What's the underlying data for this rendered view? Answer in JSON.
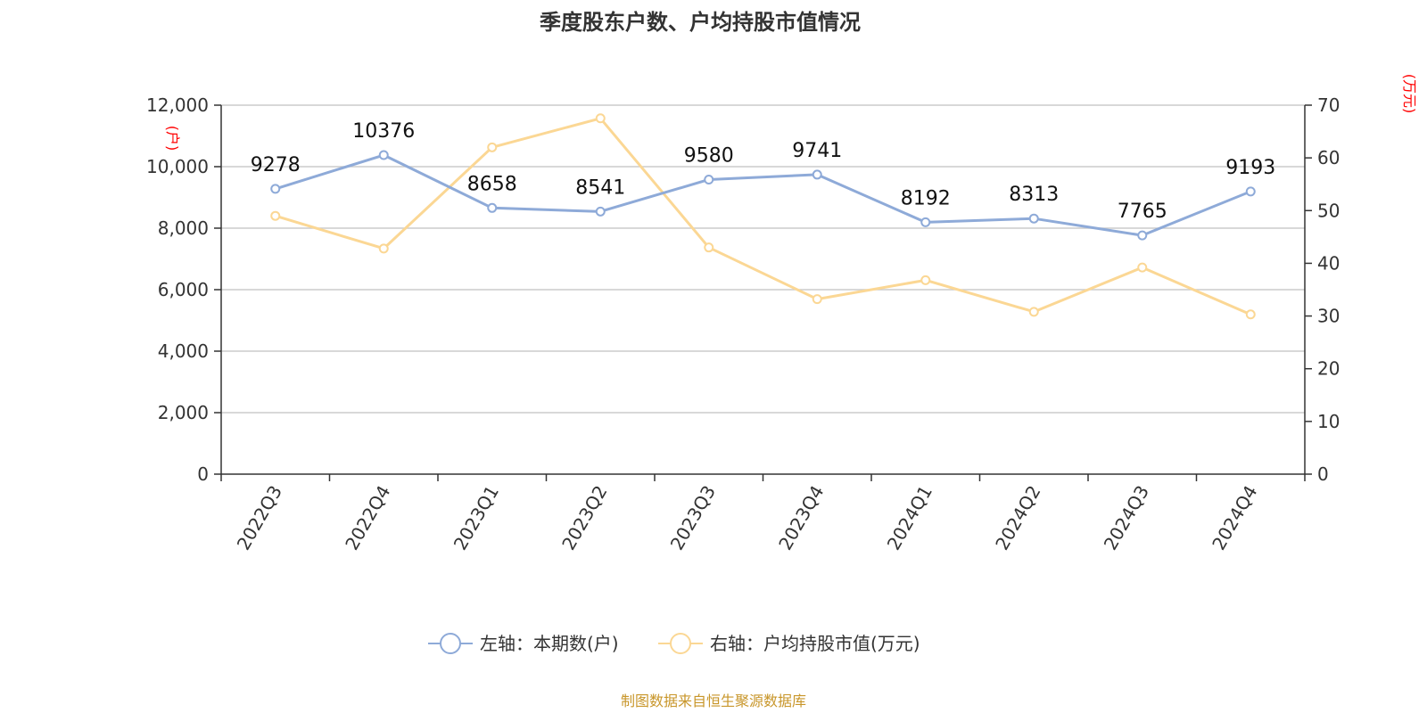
{
  "chart_data": {
    "type": "line",
    "title": "季度股东户数、户均持股市值情况",
    "categories": [
      "2022Q3",
      "2022Q4",
      "2023Q1",
      "2023Q2",
      "2023Q3",
      "2023Q4",
      "2024Q1",
      "2024Q2",
      "2024Q3",
      "2024Q4"
    ],
    "series": [
      {
        "name": "左轴：本期数(户)",
        "axis": "left",
        "color": "#8eaad8",
        "values": [
          9278,
          10376,
          8658,
          8541,
          9580,
          9741,
          8192,
          8313,
          7765,
          9193
        ],
        "data_labels": [
          "9278",
          "10376",
          "8658",
          "8541",
          "9580",
          "9741",
          "8192",
          "8313",
          "7765",
          "9193"
        ]
      },
      {
        "name": "右轴：户均持股市值(万元)",
        "axis": "right",
        "color": "#fbd794",
        "values": [
          49.0,
          42.8,
          62.0,
          67.5,
          43.0,
          33.2,
          36.8,
          30.8,
          39.2,
          30.3
        ]
      }
    ],
    "y_left": {
      "unit": "(户)",
      "ylim": [
        0,
        12000
      ],
      "ticks": [
        0,
        2000,
        4000,
        6000,
        8000,
        10000,
        12000
      ],
      "tick_labels": [
        "0",
        "2,000",
        "4,000",
        "6,000",
        "8,000",
        "10,000",
        "12,000"
      ]
    },
    "y_right": {
      "unit": "(万元)",
      "ylim": [
        0,
        70
      ],
      "ticks": [
        0,
        10,
        20,
        30,
        40,
        50,
        60,
        70
      ],
      "tick_labels": [
        "0",
        "10",
        "20",
        "30",
        "40",
        "50",
        "60",
        "70"
      ]
    },
    "grid": true,
    "legend_position": "bottom"
  },
  "source": {
    "text": "制图数据来自恒生聚源数据库",
    "color": "#c8962a"
  }
}
